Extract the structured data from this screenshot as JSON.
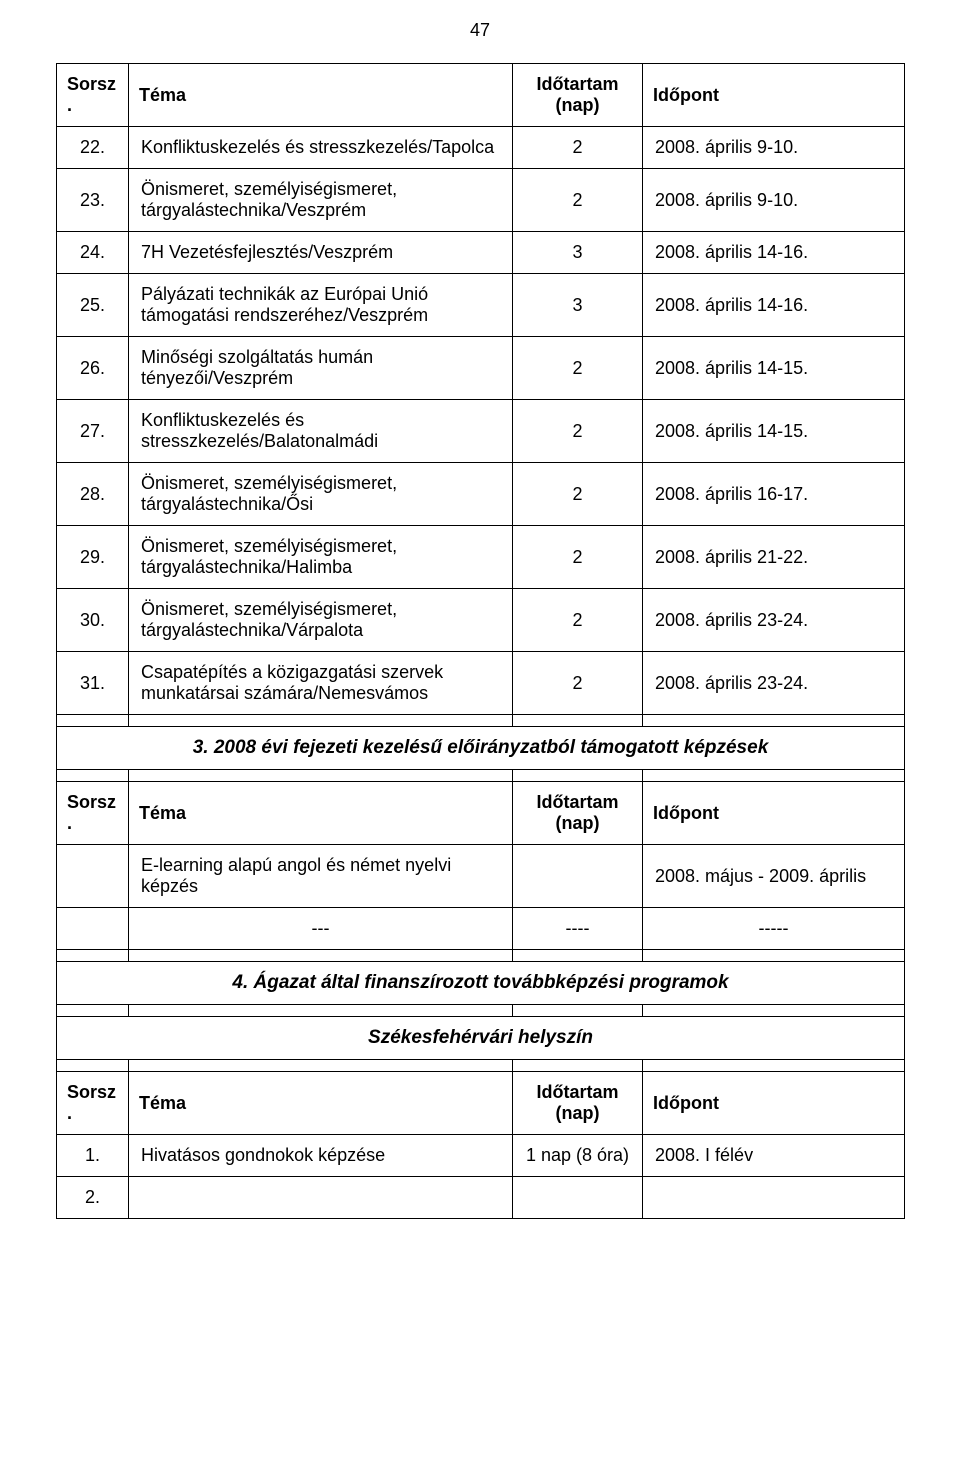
{
  "page_number": "47",
  "headers": {
    "sorsz": "Sorsz.",
    "tema": "Téma",
    "idotartam": "Időtartam (nap)",
    "idopont": "Időpont"
  },
  "rows": [
    {
      "n": "22.",
      "topic": "Konfliktuskezelés és stresszkezelés/Tapolca",
      "dur": "2",
      "when": "2008. április 9-10."
    },
    {
      "n": "23.",
      "topic": "Önismeret, személyiségismeret, tárgyalástechnika/Veszprém",
      "dur": "2",
      "when": "2008. április 9-10."
    },
    {
      "n": "24.",
      "topic": "7H Vezetésfejlesztés/Veszprém",
      "dur": "3",
      "when": "2008. április 14-16."
    },
    {
      "n": "25.",
      "topic": "Pályázati technikák az Európai Unió támogatási rendszeréhez/Veszprém",
      "dur": "3",
      "when": "2008. április 14-16."
    },
    {
      "n": "26.",
      "topic": "Minőségi szolgáltatás humán tényezői/Veszprém",
      "dur": "2",
      "when": "2008. április 14-15."
    },
    {
      "n": "27.",
      "topic": "Konfliktuskezelés és stresszkezelés/Balatonalmádi",
      "dur": "2",
      "when": "2008. április 14-15."
    },
    {
      "n": "28.",
      "topic": "Önismeret, személyiségismeret, tárgyalástechnika/Ősi",
      "dur": "2",
      "when": "2008. április 16-17."
    },
    {
      "n": "29.",
      "topic": "Önismeret, személyiségismeret, tárgyalástechnika/Halimba",
      "dur": "2",
      "when": "2008. április 21-22."
    },
    {
      "n": "30.",
      "topic": "Önismeret, személyiségismeret, tárgyalástechnika/Várpalota",
      "dur": "2",
      "when": "2008. április 23-24."
    },
    {
      "n": "31.",
      "topic": "Csapatépítés a közigazgatási szervek munkatársai számára/Nemesvámos",
      "dur": "2",
      "when": "2008. április 23-24."
    }
  ],
  "section3": "3. 2008 évi fejezeti kezelésű előirányzatból támogatott képzések",
  "sec3_rows": [
    {
      "n": "",
      "topic": "E-learning alapú angol és német nyelvi képzés",
      "dur": "",
      "when": "2008. május - 2009. április"
    },
    {
      "n": "",
      "topic": "---",
      "dur": "----",
      "when": "-----"
    }
  ],
  "section4": "4. Ágazat által finanszírozott továbbképzési programok",
  "subsection": "Székesfehérvári helyszín",
  "sec4_rows": [
    {
      "n": "1.",
      "topic": "Hivatásos gondnokok képzése",
      "dur": "1 nap (8 óra)",
      "when": "2008. I félév"
    },
    {
      "n": "2.",
      "topic": "",
      "dur": "",
      "when": ""
    }
  ]
}
